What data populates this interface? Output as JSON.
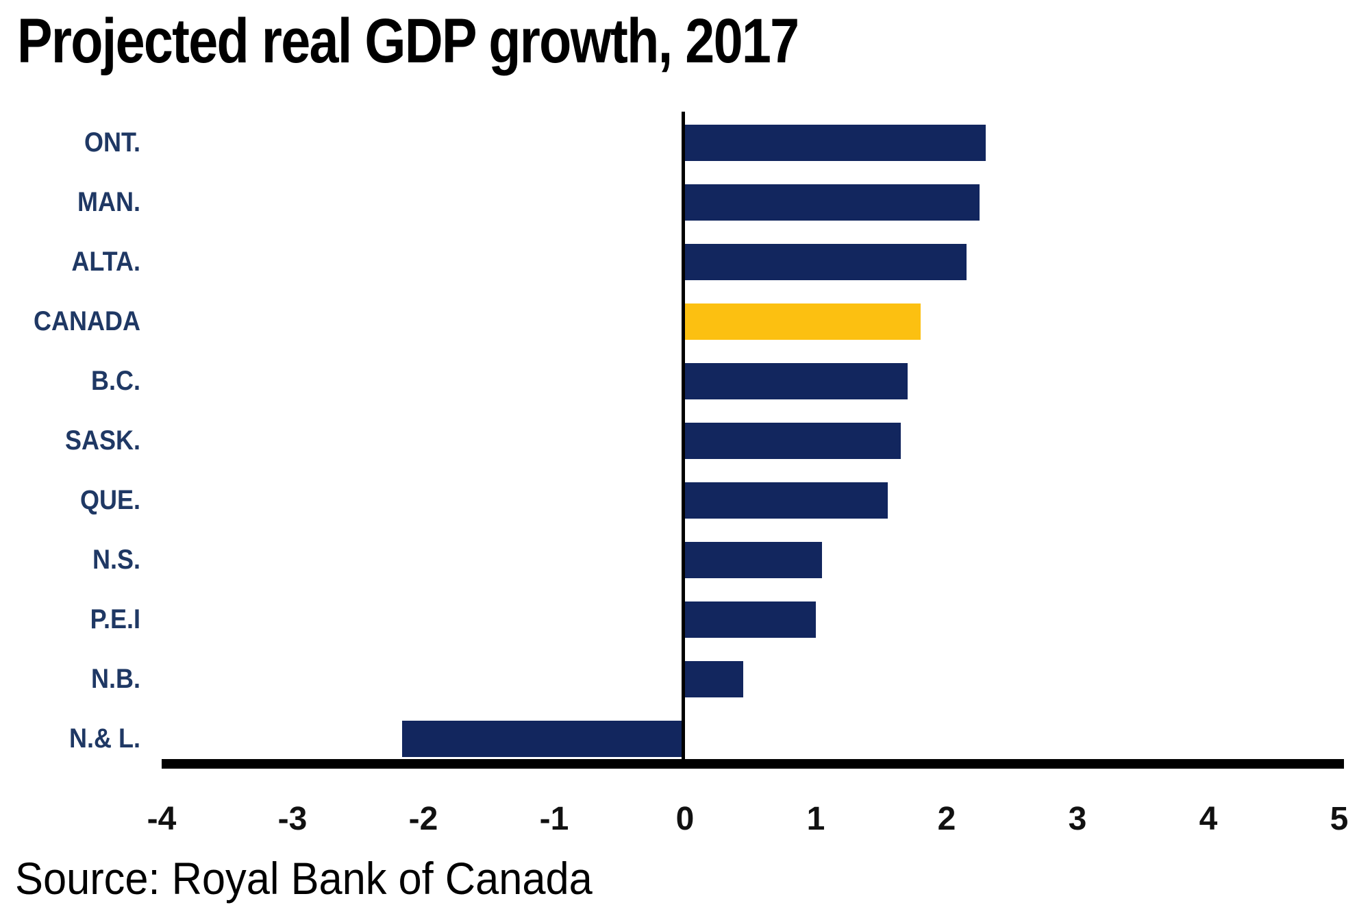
{
  "title": "Projected real GDP growth, 2017",
  "source": "Source: Royal Bank of Canada",
  "colors": {
    "bar": "#12265E",
    "highlight": "#FCC011",
    "label_text": "#1F3864",
    "tick_text": "#111111",
    "axis": "#000000",
    "background": "#FFFFFF"
  },
  "chart_data": {
    "type": "bar",
    "orientation": "horizontal",
    "title": "Projected real GDP growth, 2017",
    "categories": [
      "ONT.",
      "MAN.",
      "ALTA.",
      "CANADA",
      "B.C.",
      "SASK.",
      "QUE.",
      "N.S.",
      "P.E.I",
      "N.B.",
      "N.& L."
    ],
    "values": [
      2.3,
      2.25,
      2.15,
      1.8,
      1.7,
      1.65,
      1.55,
      1.05,
      1.0,
      0.45,
      -2.15
    ],
    "highlight_category": "CANADA",
    "xlabel": "",
    "ylabel": "",
    "xlim": [
      -4,
      5
    ],
    "xticks": [
      -4,
      -3,
      -2,
      -1,
      0,
      1,
      2,
      3,
      4,
      5
    ],
    "grid": false,
    "legend": false,
    "source": "Source: Royal Bank of Canada"
  }
}
